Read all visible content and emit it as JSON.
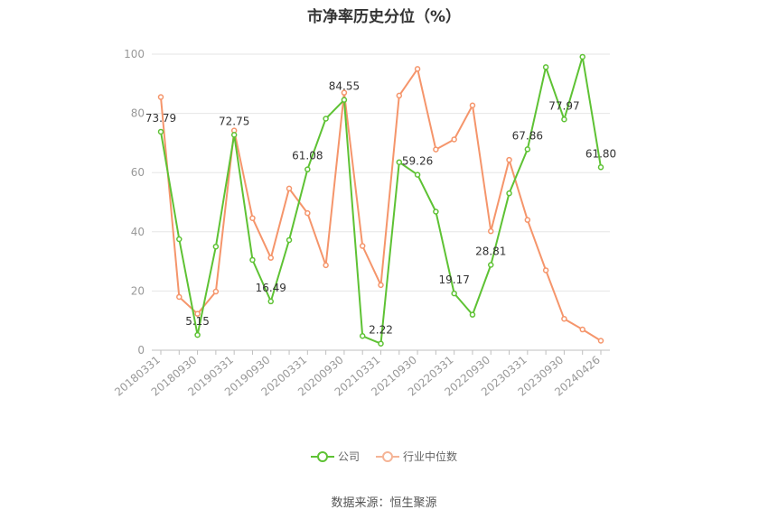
{
  "chart_data": {
    "type": "line",
    "title": "市净率历史分位（%）",
    "ylim": [
      0,
      100
    ],
    "yticks": [
      0,
      20,
      40,
      60,
      80,
      100
    ],
    "xtick_labels": [
      "20180331",
      "20180930",
      "20190331",
      "20190930",
      "20200331",
      "20200930",
      "20210331",
      "20210930",
      "20220331",
      "20220930",
      "20230331",
      "20230930",
      "20240426"
    ],
    "x": [
      "20180331",
      "20180630",
      "20180930",
      "20181231",
      "20190331",
      "20190630",
      "20190930",
      "20191231",
      "20200331",
      "20200630",
      "20200930",
      "20201231",
      "20210331",
      "20210630",
      "20210930",
      "20211231",
      "20220331",
      "20220630",
      "20220930",
      "20221231",
      "20230331",
      "20230630",
      "20230930",
      "20231231",
      "20240426"
    ],
    "grid": "horizontal",
    "legend_position": "bottom",
    "series": [
      {
        "name": "公司",
        "color": "#5ec234",
        "values": [
          73.79,
          37.5,
          5.15,
          35.0,
          72.75,
          30.5,
          16.49,
          37.2,
          61.08,
          78.2,
          84.55,
          4.8,
          2.22,
          63.5,
          59.26,
          46.8,
          19.17,
          12.0,
          28.81,
          53.0,
          67.86,
          95.6,
          77.97,
          99.1,
          61.8
        ],
        "labels": [
          "73.79",
          null,
          "5.15",
          null,
          "72.75",
          null,
          "16.49",
          null,
          "61.08",
          null,
          "84.55",
          null,
          "2.22",
          null,
          "59.26",
          null,
          "19.17",
          null,
          "28.81",
          null,
          "67.86",
          null,
          "77.97",
          null,
          "61.80"
        ]
      },
      {
        "name": "行业中位数",
        "color": "#f5956b",
        "values": [
          85.5,
          18.0,
          12.3,
          19.8,
          74.2,
          44.6,
          31.2,
          54.6,
          46.3,
          28.7,
          87.0,
          35.2,
          22.0,
          86.0,
          95.0,
          67.8,
          71.2,
          82.7,
          40.2,
          64.3,
          44.0,
          27.0,
          10.6,
          7.0,
          3.2
        ]
      }
    ]
  },
  "source": "数据来源：恒生聚源"
}
